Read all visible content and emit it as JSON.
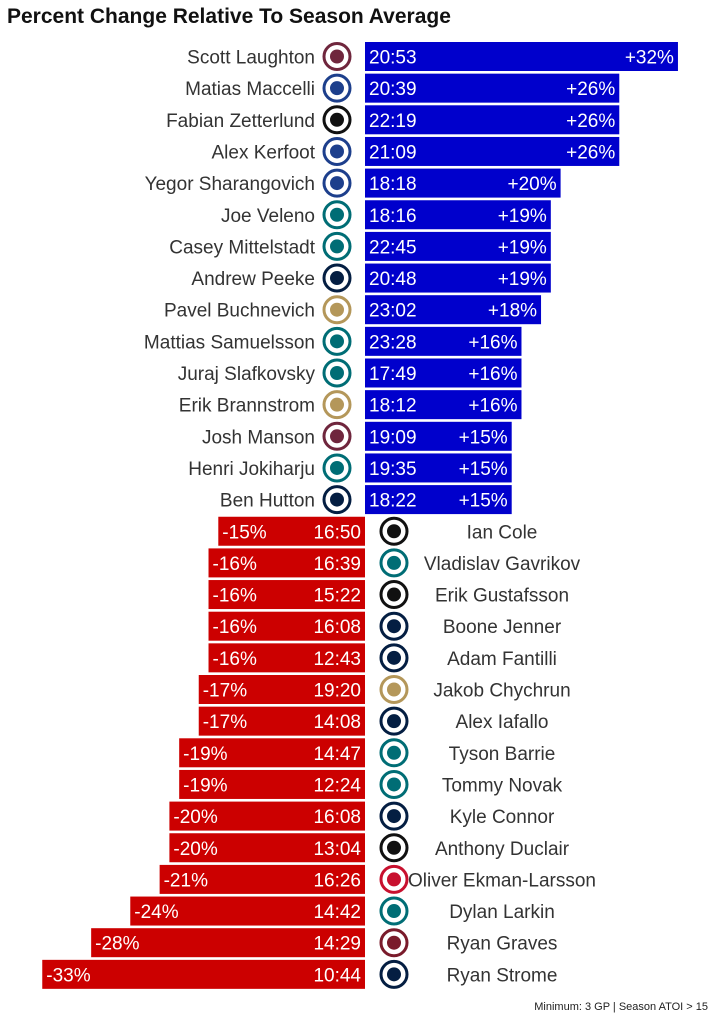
{
  "title": "Percent Change Relative To Season Average",
  "caption": "Minimum: 3 GP | Season ATOI > 15",
  "colors": {
    "positive": "#0000cc",
    "negative": "#cc0000",
    "bar_text": "#ffffff",
    "name_text": "#333333"
  },
  "chart_data": {
    "type": "bar",
    "orientation": "horizontal",
    "title": "Percent Change Relative To Season Average",
    "value_unit": "percent change",
    "rows": [
      {
        "player": "Scott Laughton",
        "toi": "20:53",
        "pct": 32,
        "label": "+32%",
        "team_icon": "flyers-logo"
      },
      {
        "player": "Matias Maccelli",
        "toi": "20:39",
        "pct": 26,
        "label": "+26%",
        "team_icon": "coyotes-logo"
      },
      {
        "player": "Fabian Zetterlund",
        "toi": "22:19",
        "pct": 26,
        "label": "+26%",
        "team_icon": "sharks-logo"
      },
      {
        "player": "Alex Kerfoot",
        "toi": "21:09",
        "pct": 26,
        "label": "+26%",
        "team_icon": "coyotes-logo"
      },
      {
        "player": "Yegor Sharangovich",
        "toi": "18:18",
        "pct": 20,
        "label": "+20%",
        "team_icon": "flames-logo"
      },
      {
        "player": "Joe Veleno",
        "toi": "18:16",
        "pct": 19,
        "label": "+19%",
        "team_icon": "red-wings-logo"
      },
      {
        "player": "Casey Mittelstadt",
        "toi": "22:45",
        "pct": 19,
        "label": "+19%",
        "team_icon": "sabres-logo"
      },
      {
        "player": "Andrew Peeke",
        "toi": "20:48",
        "pct": 19,
        "label": "+19%",
        "team_icon": "blue-jackets-logo"
      },
      {
        "player": "Pavel Buchnevich",
        "toi": "23:02",
        "pct": 18,
        "label": "+18%",
        "team_icon": "blues-logo"
      },
      {
        "player": "Mattias Samuelsson",
        "toi": "23:28",
        "pct": 16,
        "label": "+16%",
        "team_icon": "sabres-logo"
      },
      {
        "player": "Juraj Slafkovsky",
        "toi": "17:49",
        "pct": 16,
        "label": "+16%",
        "team_icon": "canadiens-logo"
      },
      {
        "player": "Erik Brannstrom",
        "toi": "18:12",
        "pct": 16,
        "label": "+16%",
        "team_icon": "senators-logo"
      },
      {
        "player": "Josh Manson",
        "toi": "19:09",
        "pct": 15,
        "label": "+15%",
        "team_icon": "avalanche-logo"
      },
      {
        "player": "Henri Jokiharju",
        "toi": "19:35",
        "pct": 15,
        "label": "+15%",
        "team_icon": "sabres-logo"
      },
      {
        "player": "Ben Hutton",
        "toi": "18:22",
        "pct": 15,
        "label": "+15%",
        "team_icon": "golden-knights-logo"
      },
      {
        "player": "Ian Cole",
        "toi": "16:50",
        "pct": -15,
        "label": "-15%",
        "team_icon": "canucks-logo"
      },
      {
        "player": "Vladislav Gavrikov",
        "toi": "16:39",
        "pct": -16,
        "label": "-16%",
        "team_icon": "kings-logo"
      },
      {
        "player": "Erik Gustafsson",
        "toi": "15:22",
        "pct": -16,
        "label": "-16%",
        "team_icon": "rangers-logo"
      },
      {
        "player": "Boone Jenner",
        "toi": "16:08",
        "pct": -16,
        "label": "-16%",
        "team_icon": "blue-jackets-logo"
      },
      {
        "player": "Adam Fantilli",
        "toi": "12:43",
        "pct": -16,
        "label": "-16%",
        "team_icon": "blue-jackets-logo"
      },
      {
        "player": "Jakob Chychrun",
        "toi": "19:20",
        "pct": -17,
        "label": "-17%",
        "team_icon": "senators-logo"
      },
      {
        "player": "Alex Iafallo",
        "toi": "14:08",
        "pct": -17,
        "label": "-17%",
        "team_icon": "jets-logo"
      },
      {
        "player": "Tyson Barrie",
        "toi": "14:47",
        "pct": -19,
        "label": "-19%",
        "team_icon": "predators-logo"
      },
      {
        "player": "Tommy Novak",
        "toi": "12:24",
        "pct": -19,
        "label": "-19%",
        "team_icon": "predators-logo"
      },
      {
        "player": "Kyle Connor",
        "toi": "16:08",
        "pct": -20,
        "label": "-20%",
        "team_icon": "jets-logo"
      },
      {
        "player": "Anthony Duclair",
        "toi": "13:04",
        "pct": -20,
        "label": "-20%",
        "team_icon": "sharks-logo"
      },
      {
        "player": "Oliver Ekman-Larsson",
        "toi": "16:26",
        "pct": -21,
        "label": "-21%",
        "team_icon": "panthers-logo"
      },
      {
        "player": "Dylan Larkin",
        "toi": "14:42",
        "pct": -24,
        "label": "-24%",
        "team_icon": "red-wings-logo"
      },
      {
        "player": "Ryan Graves",
        "toi": "14:29",
        "pct": -28,
        "label": "-28%",
        "team_icon": "penguins-logo"
      },
      {
        "player": "Ryan Strome",
        "toi": "10:44",
        "pct": -33,
        "label": "-33%",
        "team_icon": "ducks-logo"
      }
    ]
  }
}
